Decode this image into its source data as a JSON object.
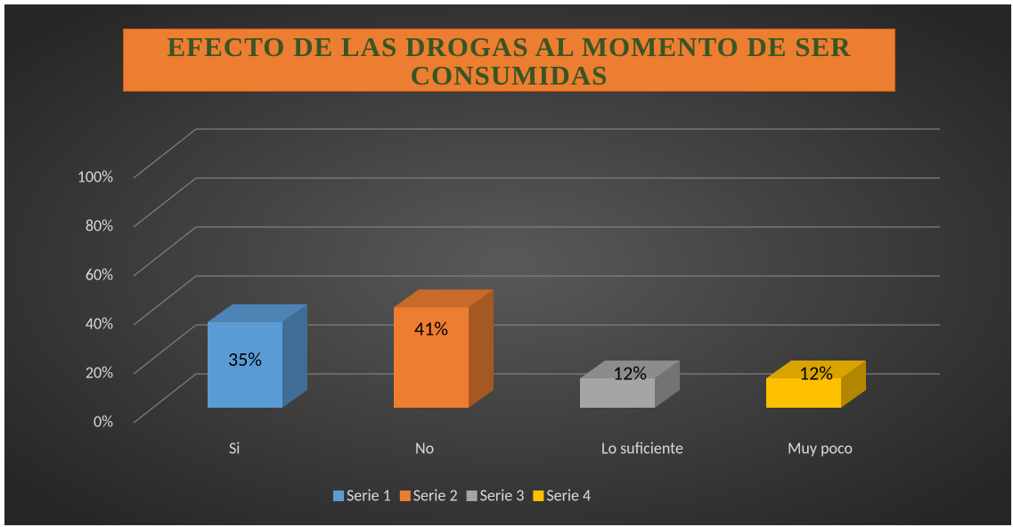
{
  "chart_data": {
    "type": "bar3d",
    "title": "EFECTO DE LAS DROGAS AL MOMENTO DE SER CONSUMIDAS",
    "categories": [
      "Si",
      "No",
      "Lo suficiente",
      "Muy poco"
    ],
    "series": [
      {
        "name": "Serie 1",
        "color": "#5B9BD5",
        "values": [
          35,
          null,
          null,
          null
        ],
        "value_labels": [
          "35%",
          null,
          null,
          null
        ]
      },
      {
        "name": "Serie 2",
        "color": "#ED7D31",
        "values": [
          null,
          41,
          null,
          null
        ],
        "value_labels": [
          null,
          "41%",
          null,
          null
        ]
      },
      {
        "name": "Serie 3",
        "color": "#A5A5A5",
        "values": [
          null,
          null,
          12,
          null
        ],
        "value_labels": [
          null,
          null,
          "12%",
          null
        ]
      },
      {
        "name": "Serie 4",
        "color": "#FFC000",
        "values": [
          null,
          null,
          null,
          12
        ],
        "value_labels": [
          null,
          null,
          null,
          "12%"
        ]
      }
    ],
    "ylim": [
      0,
      100
    ],
    "yticks": [
      {
        "value": 0,
        "label": "0%"
      },
      {
        "value": 20,
        "label": "20%"
      },
      {
        "value": 40,
        "label": "40%"
      },
      {
        "value": 60,
        "label": "60%"
      },
      {
        "value": 80,
        "label": "80%"
      },
      {
        "value": 100,
        "label": "100%"
      }
    ],
    "grid": true,
    "legend": "bottom"
  }
}
